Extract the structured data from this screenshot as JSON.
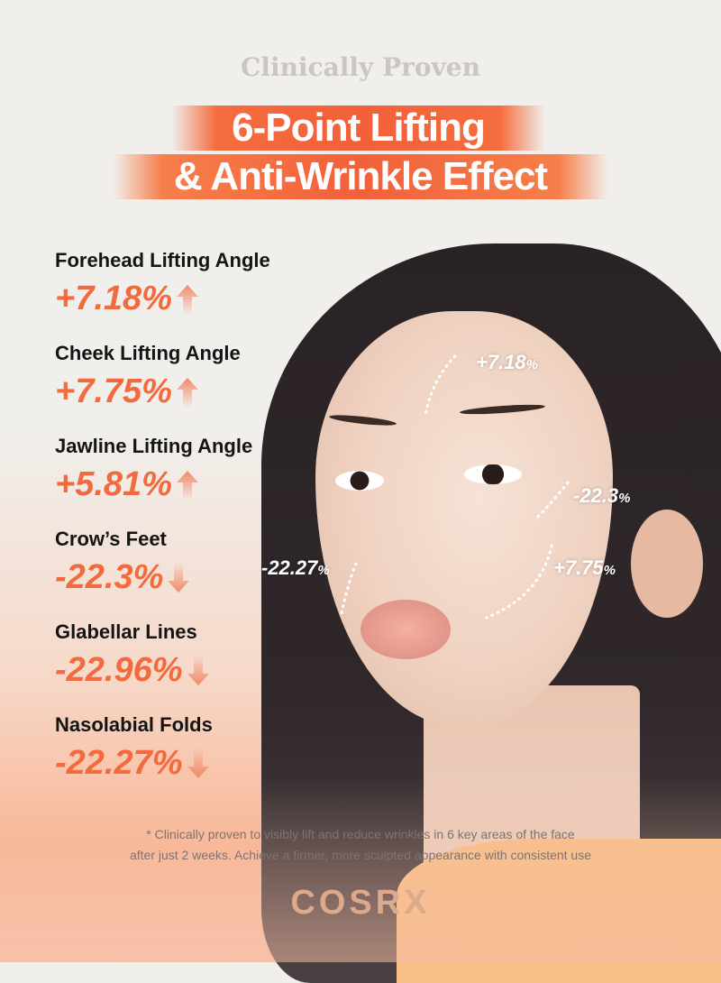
{
  "header": {
    "subtitle": "Clinically Proven",
    "title_line1": "6-Point Lifting",
    "title_line2": "& Anti-Wrinkle Effect"
  },
  "stats": [
    {
      "label": "Forehead Lifting Angle",
      "value": "+7.18%",
      "direction": "up"
    },
    {
      "label": "Cheek Lifting Angle",
      "value": "+7.75%",
      "direction": "up"
    },
    {
      "label": "Jawline Lifting Angle",
      "value": "+5.81%",
      "direction": "up"
    },
    {
      "label": "Crow’s Feet",
      "value": "-22.3%",
      "direction": "down"
    },
    {
      "label": "Glabellar Lines",
      "value": "-22.96%",
      "direction": "down"
    },
    {
      "label": "Nasolabial Folds",
      "value": "-22.27%",
      "direction": "down"
    }
  ],
  "face_labels": {
    "forehead": {
      "number": "+7.18",
      "unit": "%"
    },
    "crows_feet": {
      "number": "-22.3",
      "unit": "%"
    },
    "nasolabial": {
      "number": "-22.27",
      "unit": "%"
    },
    "cheek": {
      "number": "+7.75",
      "unit": "%"
    }
  },
  "footnote": {
    "line1": "* Clinically proven to visibly lift and reduce wrinkles in 6 key areas of the face",
    "line2": "after just 2 weeks. Achieve a firmer, more sculpted appearance with consistent use"
  },
  "brand": "COSRX",
  "colors": {
    "accent": "#f26b3e",
    "logo": "#dba98c"
  }
}
